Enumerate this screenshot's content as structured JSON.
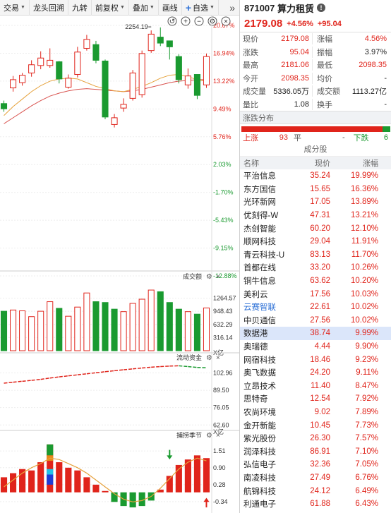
{
  "toolbar": {
    "items": [
      {
        "label": "交易",
        "dropdown": true
      },
      {
        "label": "龙头回溯",
        "dropdown": false
      },
      {
        "label": "九转",
        "dropdown": false
      },
      {
        "label": "前复权",
        "dropdown": true
      },
      {
        "label": "叠加",
        "dropdown": true
      },
      {
        "label": "画线",
        "dropdown": false
      },
      {
        "label": "自选",
        "dropdown": true
      }
    ],
    "more": "»"
  },
  "kline": {
    "y_ticks": [
      "20.67%",
      "16.94%",
      "13.22%",
      "9.49%",
      "5.76%",
      "2.03%",
      "-1.70%",
      "-5.43%",
      "-9.15%",
      "-12.88%"
    ],
    "high_label": "2254.19",
    "candles": [
      {
        "o": 10.2,
        "c": 9.5,
        "h": 10.6,
        "l": 9.1
      },
      {
        "o": 12.3,
        "c": 13.4,
        "h": 13.9,
        "l": 11.8
      },
      {
        "o": 13.0,
        "c": 14.0,
        "h": 14.3,
        "l": 12.6
      },
      {
        "o": 14.3,
        "c": 15.4,
        "h": 16.0,
        "l": 13.8
      },
      {
        "o": 15.3,
        "c": 16.3,
        "h": 17.2,
        "l": 14.8
      },
      {
        "o": 15.3,
        "c": 16.0,
        "h": 17.6,
        "l": 15.0
      },
      {
        "o": 15.8,
        "c": 13.5,
        "h": 15.9,
        "l": 12.9
      },
      {
        "o": 12.4,
        "c": 13.6,
        "h": 14.1,
        "l": 12.2
      },
      {
        "o": 14.1,
        "c": 17.1,
        "h": 17.8,
        "l": 13.7
      },
      {
        "o": 17.6,
        "c": 18.8,
        "h": 19.4,
        "l": 17.3
      },
      {
        "o": 18.1,
        "c": 16.0,
        "h": 18.6,
        "l": 15.6
      },
      {
        "o": 15.9,
        "c": 8.4,
        "h": 16.1,
        "l": 8.1
      },
      {
        "o": 7.4,
        "c": 8.3,
        "h": 8.8,
        "l": 7.0
      },
      {
        "o": 9.6,
        "c": 10.1,
        "h": 10.9,
        "l": 9.1
      },
      {
        "o": 10.9,
        "c": 14.3,
        "h": 14.7,
        "l": 10.6
      },
      {
        "o": 11.4,
        "c": 16.9,
        "h": 17.3,
        "l": 11.0
      },
      {
        "o": 17.3,
        "c": 19.5,
        "h": 20.0,
        "l": 17.0
      },
      {
        "o": 19.1,
        "c": 18.3,
        "h": 20.4,
        "l": 17.9
      },
      {
        "o": 18.6,
        "c": 17.8,
        "h": 18.6,
        "l": 16.1
      },
      {
        "o": 16.5,
        "c": 13.4,
        "h": 16.8,
        "l": 12.9
      },
      {
        "o": 12.7,
        "c": 13.9,
        "h": 14.9,
        "l": 12.2
      },
      {
        "o": 14.1,
        "c": 11.3,
        "h": 14.1,
        "l": 10.8
      },
      {
        "o": 12.7,
        "c": 16.5,
        "h": 16.9,
        "l": 12.3
      }
    ],
    "ma5": [
      8.6,
      9.8,
      10.8,
      11.8,
      12.6,
      13.2,
      13.5,
      13.6,
      13.5,
      13.0,
      12.5,
      12.2,
      11.9,
      11.8,
      12.1,
      12.5,
      13.0,
      13.6,
      14.0,
      14.1,
      13.8,
      13.4,
      13.2
    ],
    "ma10": [
      7.5,
      8.3,
      9.1,
      9.9,
      10.6,
      11.2,
      11.6,
      11.9,
      12.1,
      12.2,
      12.1,
      12.0,
      11.9,
      11.8,
      11.9,
      12.1,
      12.4,
      12.7,
      13.0,
      13.2,
      13.3,
      13.4,
      13.4
    ]
  },
  "volume": {
    "title": "成交额",
    "y_ticks": [
      "1264.57",
      "948.43",
      "632.29",
      "316.14"
    ],
    "unit": "X亿",
    "bars": [
      {
        "v": 950,
        "up": false
      },
      {
        "v": 980,
        "up": true
      },
      {
        "v": 960,
        "up": true
      },
      {
        "v": 820,
        "up": true
      },
      {
        "v": 950,
        "up": true
      },
      {
        "v": 1180,
        "up": true
      },
      {
        "v": 1020,
        "up": false
      },
      {
        "v": 830,
        "up": true
      },
      {
        "v": 1050,
        "up": true
      },
      {
        "v": 1390,
        "up": true
      },
      {
        "v": 1180,
        "up": false
      },
      {
        "v": 1160,
        "up": false
      },
      {
        "v": 1000,
        "up": false
      },
      {
        "v": 940,
        "up": true
      },
      {
        "v": 1140,
        "up": true
      },
      {
        "v": 1240,
        "up": true
      },
      {
        "v": 1460,
        "up": true
      },
      {
        "v": 1420,
        "up": false
      },
      {
        "v": 1160,
        "up": false
      },
      {
        "v": 1000,
        "up": false
      },
      {
        "v": 940,
        "up": true
      },
      {
        "v": 880,
        "up": false
      },
      {
        "v": 1030,
        "up": true
      }
    ]
  },
  "flow": {
    "title": "流动资金",
    "y_ticks": [
      "102.96",
      "89.50",
      "76.05",
      "62.60"
    ],
    "unit": "X亿",
    "points": [
      95.0,
      95.8,
      96.5,
      97.2,
      98.0,
      99.0,
      99.9,
      100.7,
      101.5,
      102.3,
      103.1,
      103.9,
      104.7,
      105.4,
      106.1,
      106.8,
      107.4,
      107.9,
      108.3,
      108.5,
      107.9,
      107.2,
      107.0
    ]
  },
  "indicator": {
    "title": "捕捞季节",
    "y_ticks": [
      "1.51",
      "0.90",
      "0.28",
      "-0.34"
    ],
    "bars": [
      0.55,
      0.7,
      0.85,
      0.8,
      1.1,
      1.75,
      1.1,
      0.9,
      0.8,
      0.55,
      0.28,
      0.05,
      -0.35,
      -0.5,
      -0.55,
      -0.5,
      -0.3,
      0.1,
      0.6,
      1.0,
      1.2,
      1.35,
      1.25
    ],
    "line": [
      0.2,
      0.45,
      0.7,
      0.9,
      1.05,
      1.25,
      1.2,
      1.05,
      0.9,
      0.7,
      0.45,
      0.2,
      -0.05,
      -0.25,
      -0.35,
      -0.3,
      -0.15,
      0.15,
      0.5,
      0.85,
      1.1,
      1.25,
      1.15
    ]
  },
  "quote": {
    "code": "871007",
    "name": "算力租赁",
    "price": "2179.08",
    "change_pct": "+4.56%",
    "change": "+95.04",
    "rows": [
      {
        "l1": "现价",
        "v1": "2179.08",
        "c1": "red",
        "l2": "涨幅",
        "v2": "4.56%",
        "c2": "red"
      },
      {
        "l1": "涨跌",
        "v1": "95.04",
        "c1": "red",
        "l2": "振幅",
        "v2": "3.97%",
        "c2": "dark"
      },
      {
        "l1": "最高",
        "v1": "2181.06",
        "c1": "red",
        "l2": "最低",
        "v2": "2098.35",
        "c2": "red"
      },
      {
        "l1": "今开",
        "v1": "2098.35",
        "c1": "red",
        "l2": "均价",
        "v2": "-",
        "c2": "dark"
      },
      {
        "l1": "成交量",
        "v1": "5336.05万",
        "c1": "dark",
        "l2": "成交额",
        "v2": "1113.27亿",
        "c2": "dark"
      },
      {
        "l1": "量比",
        "v1": "1.08",
        "c1": "dark",
        "l2": "换手",
        "v2": "-",
        "c2": "dark"
      }
    ]
  },
  "distribution": {
    "title": "涨跌分布",
    "up_label": "上涨",
    "up_count": "93",
    "flat_label": "平",
    "flat_count": "-",
    "down_label": "下跌",
    "down_count": "6",
    "colors": {
      "up": "#e0241b",
      "down": "#1a9a30"
    }
  },
  "components": {
    "title": "成分股",
    "headers": [
      "名称",
      "现价",
      "涨幅"
    ],
    "rows": [
      {
        "name": "平治信息",
        "price": "35.24",
        "pct": "19.99%"
      },
      {
        "name": "东方国信",
        "price": "15.65",
        "pct": "16.36%"
      },
      {
        "name": "光环新网",
        "price": "17.05",
        "pct": "13.89%"
      },
      {
        "name": "优刻得-W",
        "price": "47.31",
        "pct": "13.21%"
      },
      {
        "name": "杰创智能",
        "price": "60.20",
        "pct": "12.10%"
      },
      {
        "name": "顺网科技",
        "price": "29.04",
        "pct": "11.91%"
      },
      {
        "name": "青云科技-U",
        "price": "83.13",
        "pct": "11.70%"
      },
      {
        "name": "首都在线",
        "price": "33.20",
        "pct": "10.26%"
      },
      {
        "name": "铜牛信息",
        "price": "63.62",
        "pct": "10.20%"
      },
      {
        "name": "美利云",
        "price": "17.56",
        "pct": "10.03%"
      },
      {
        "name": "云赛智联",
        "price": "22.61",
        "pct": "10.02%",
        "blue": true
      },
      {
        "name": "中贝通信",
        "price": "27.56",
        "pct": "10.02%"
      },
      {
        "name": "数据港",
        "price": "38.74",
        "pct": "9.99%",
        "selected": true
      },
      {
        "name": "奥瑞德",
        "price": "4.44",
        "pct": "9.90%"
      },
      {
        "name": "网宿科技",
        "price": "18.46",
        "pct": "9.23%"
      },
      {
        "name": "奥飞数据",
        "price": "24.20",
        "pct": "9.11%"
      },
      {
        "name": "立昂技术",
        "price": "11.40",
        "pct": "8.47%"
      },
      {
        "name": "思特奇",
        "price": "12.54",
        "pct": "7.92%"
      },
      {
        "name": "农尚环境",
        "price": "9.02",
        "pct": "7.89%"
      },
      {
        "name": "金开新能",
        "price": "10.45",
        "pct": "7.73%"
      },
      {
        "name": "紫光股份",
        "price": "26.30",
        "pct": "7.57%"
      },
      {
        "name": "润泽科技",
        "price": "86.91",
        "pct": "7.10%"
      },
      {
        "name": "弘信电子",
        "price": "32.36",
        "pct": "7.05%"
      },
      {
        "name": "南凌科技",
        "price": "27.49",
        "pct": "6.76%"
      },
      {
        "name": "航锦科技",
        "price": "24.12",
        "pct": "6.49%"
      },
      {
        "name": "利通电子",
        "price": "61.88",
        "pct": "6.43%"
      }
    ]
  },
  "colors": {
    "up": "#e0241b",
    "down": "#1a9a30",
    "ma5": "#e6a23c",
    "ma10": "#d9534f",
    "flow": "#e0241b",
    "bg": "#ffffff"
  }
}
